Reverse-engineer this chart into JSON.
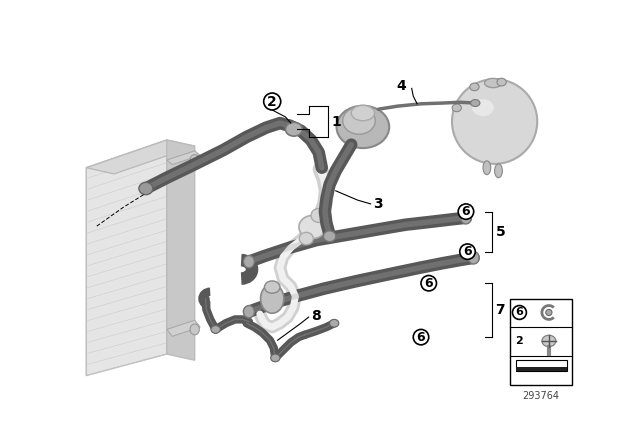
{
  "bg_color": "#ffffff",
  "dark_hose": "#585858",
  "light_hose": "#b8b8b8",
  "white_hose": "#d0d0d0",
  "rad_face": "#e8e8e8",
  "rad_edge": "#c0c0c0",
  "rad_top": "#d8d8d8",
  "rad_side": "#cccccc",
  "tank_body": "#d5d5d5",
  "tank_highlight": "#f0f0f0",
  "pump_body": "#c8c8c8",
  "legend_num": "293764",
  "clamp_color": "#aaaaaa",
  "callout_lw": 0.7,
  "hose_lw": 9,
  "hose_lw_sm": 6
}
